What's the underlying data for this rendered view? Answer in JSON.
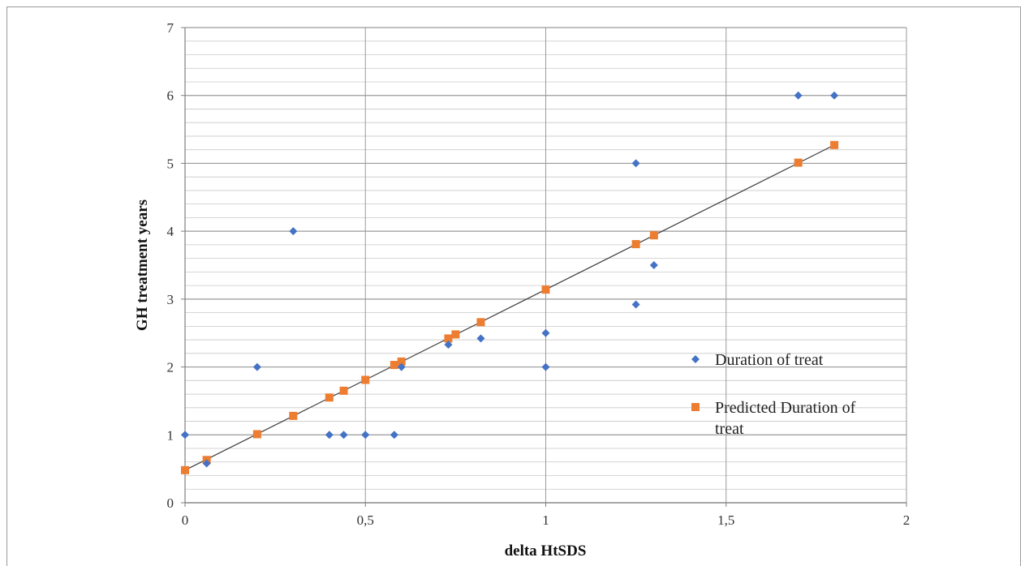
{
  "chart_data": {
    "type": "scatter",
    "xlabel": "delta HtSDS",
    "ylabel": "GH treatment years",
    "xlim": [
      0,
      2
    ],
    "ylim": [
      0,
      7
    ],
    "x_ticks": [
      "0",
      "0,5",
      "1",
      "1,5",
      "2"
    ],
    "y_ticks": [
      "0",
      "1",
      "2",
      "3",
      "4",
      "5",
      "6",
      "7"
    ],
    "grid": true,
    "legend_position": "right",
    "series": [
      {
        "name": "Duration of treat",
        "marker": "diamond",
        "color": "#4472C4",
        "points": [
          [
            0,
            1
          ],
          [
            0.06,
            0.58
          ],
          [
            0.2,
            2
          ],
          [
            0.3,
            4
          ],
          [
            0.4,
            1
          ],
          [
            0.44,
            1
          ],
          [
            0.5,
            1
          ],
          [
            0.58,
            1
          ],
          [
            0.6,
            2
          ],
          [
            0.73,
            2.33
          ],
          [
            0.82,
            2.42
          ],
          [
            1.0,
            2.5
          ],
          [
            1.0,
            2
          ],
          [
            1.25,
            5
          ],
          [
            1.25,
            2.92
          ],
          [
            1.3,
            3.5
          ],
          [
            1.7,
            6
          ],
          [
            1.8,
            6
          ]
        ]
      },
      {
        "name": "Predicted Duration of treat",
        "legend_lines": [
          "Predicted Duration of",
          "treat"
        ],
        "marker": "square",
        "color": "#ED7D31",
        "points": [
          [
            0,
            0.48
          ],
          [
            0.06,
            0.63
          ],
          [
            0.2,
            1.01
          ],
          [
            0.3,
            1.28
          ],
          [
            0.4,
            1.55
          ],
          [
            0.44,
            1.65
          ],
          [
            0.5,
            1.81
          ],
          [
            0.58,
            2.03
          ],
          [
            0.6,
            2.08
          ],
          [
            0.73,
            2.42
          ],
          [
            0.75,
            2.48
          ],
          [
            0.82,
            2.66
          ],
          [
            1.0,
            3.14
          ],
          [
            1.25,
            3.81
          ],
          [
            1.3,
            3.94
          ],
          [
            1.7,
            5.01
          ],
          [
            1.8,
            5.27
          ]
        ]
      }
    ],
    "trendline": {
      "from": [
        0,
        0.48
      ],
      "to": [
        1.8,
        5.27
      ],
      "color": "#3a3a3a"
    }
  }
}
